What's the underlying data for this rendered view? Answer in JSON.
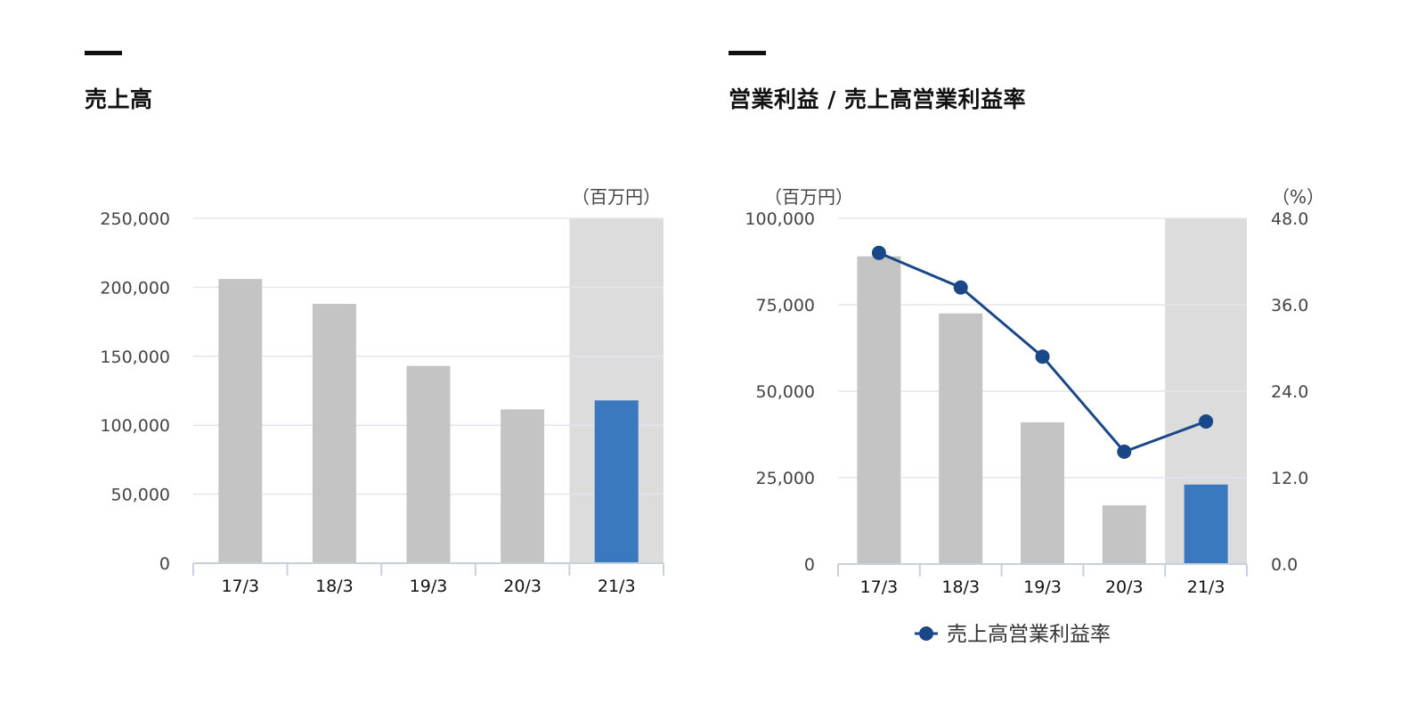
{
  "colors": {
    "bar_past": "#c4c4c4",
    "bar_current": "#3a78bf",
    "highlight_band": "#dcdcdc",
    "line": "#1a4788",
    "grid": "#e2e6ec",
    "axis": "#c8d0dc"
  },
  "chart_data": [
    {
      "type": "bar",
      "title": "売上高",
      "unit_label": "（百万円）",
      "categories": [
        "17/3",
        "18/3",
        "19/3",
        "20/3",
        "21/3"
      ],
      "values": [
        206000,
        188000,
        143000,
        111500,
        118000
      ],
      "highlight_category": "21/3",
      "ylim": [
        0,
        250000
      ],
      "yticks": [
        0,
        50000,
        100000,
        150000,
        200000,
        250000
      ],
      "ytick_labels": [
        "0",
        "50,000",
        "100,000",
        "150,000",
        "200,000",
        "250,000"
      ],
      "grid": true
    },
    {
      "type": "bar+line",
      "title": "営業利益 / 売上高営業利益率",
      "left_unit_label": "（百万円）",
      "right_unit_label": "（%）",
      "categories": [
        "17/3",
        "18/3",
        "19/3",
        "20/3",
        "21/3"
      ],
      "bar_values": [
        89000,
        72500,
        41000,
        17000,
        23000
      ],
      "line_series": {
        "name": "売上高営業利益率",
        "values": [
          43.2,
          38.4,
          28.8,
          15.6,
          19.8
        ]
      },
      "highlight_category": "21/3",
      "ylim_left": [
        0,
        100000
      ],
      "yticks_left": [
        0,
        25000,
        50000,
        75000,
        100000
      ],
      "ytick_labels_left": [
        "0",
        "25,000",
        "50,000",
        "75,000",
        "100,000"
      ],
      "ylim_right": [
        0,
        48
      ],
      "ytick_labels_right": [
        "0.0",
        "12.0",
        "24.0",
        "36.0",
        "48.0"
      ],
      "legend": "bottom-center",
      "grid": true
    }
  ]
}
